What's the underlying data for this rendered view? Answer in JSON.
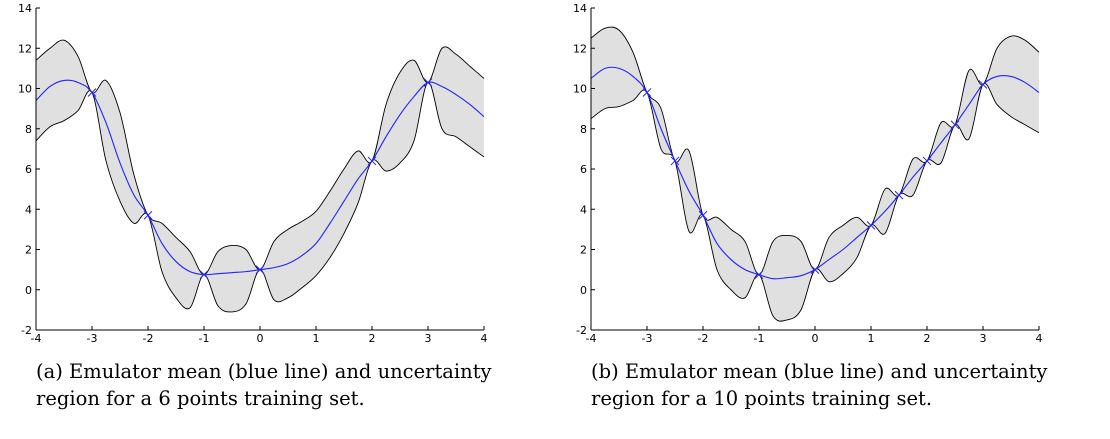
{
  "captions": {
    "a": "(a) Emulator mean (blue line) and uncertainty region for a 6 points training set.",
    "b": "(b) Emulator mean (blue line) and uncertainty region for a 10 points training set."
  },
  "chart_data": [
    {
      "type": "line",
      "title": "",
      "xlabel": "",
      "ylabel": "",
      "xlim": [
        -4,
        4
      ],
      "ylim": [
        -2,
        14
      ],
      "xticks": [
        -4,
        -3,
        -2,
        -1,
        0,
        1,
        2,
        3,
        4
      ],
      "yticks": [
        -2,
        0,
        2,
        4,
        6,
        8,
        10,
        12,
        14
      ],
      "grid": false,
      "colors": {
        "mean": "#2222ff",
        "band_fill": "#e0e0e0",
        "band_edge": "#000000",
        "marker": "#2222ff"
      },
      "training_points": {
        "x": [
          -3,
          -2,
          -1,
          0,
          2,
          3
        ],
        "y": [
          9.8,
          3.7,
          0.75,
          1.0,
          6.4,
          10.3
        ]
      },
      "series": [
        {
          "role": "mean",
          "x": [
            -4,
            -3.75,
            -3.5,
            -3.25,
            -3,
            -2.75,
            -2.5,
            -2.25,
            -2,
            -1.75,
            -1.5,
            -1.25,
            -1,
            -0.75,
            -0.5,
            -0.25,
            0,
            0.25,
            0.5,
            0.75,
            1,
            1.25,
            1.5,
            1.75,
            2,
            2.25,
            2.5,
            2.75,
            3,
            3.25,
            3.5,
            3.75,
            4
          ],
          "values": [
            9.4,
            10.1,
            10.4,
            10.3,
            9.8,
            8.3,
            6.3,
            4.7,
            3.7,
            2.3,
            1.4,
            0.9,
            0.75,
            0.8,
            0.85,
            0.9,
            1.0,
            1.1,
            1.3,
            1.7,
            2.3,
            3.3,
            4.4,
            5.5,
            6.4,
            7.6,
            8.7,
            9.6,
            10.3,
            10.1,
            9.7,
            9.2,
            8.6
          ]
        },
        {
          "role": "upper",
          "x": [
            -4,
            -3.75,
            -3.5,
            -3.25,
            -3,
            -2.75,
            -2.5,
            -2.25,
            -2,
            -1.75,
            -1.5,
            -1.25,
            -1,
            -0.75,
            -0.5,
            -0.25,
            0,
            0.25,
            0.5,
            0.75,
            1,
            1.25,
            1.5,
            1.75,
            2,
            2.25,
            2.5,
            2.75,
            3,
            3.25,
            3.5,
            3.75,
            4
          ],
          "values": [
            11.4,
            12.0,
            12.4,
            11.6,
            9.8,
            10.4,
            8.8,
            5.7,
            3.7,
            3.3,
            2.6,
            1.9,
            0.75,
            1.9,
            2.2,
            2.0,
            1.0,
            2.4,
            3.0,
            3.4,
            3.9,
            4.9,
            6.0,
            6.9,
            6.4,
            9.2,
            10.8,
            11.4,
            10.3,
            12.0,
            11.7,
            11.1,
            10.5
          ]
        },
        {
          "role": "lower",
          "x": [
            -4,
            -3.75,
            -3.5,
            -3.25,
            -3,
            -2.75,
            -2.5,
            -2.25,
            -2,
            -1.75,
            -1.5,
            -1.25,
            -1,
            -0.75,
            -0.5,
            -0.25,
            0,
            0.25,
            0.5,
            0.75,
            1,
            1.25,
            1.5,
            1.75,
            2,
            2.25,
            2.5,
            2.75,
            3,
            3.25,
            3.5,
            3.75,
            4
          ],
          "values": [
            7.4,
            8.1,
            8.4,
            8.9,
            9.8,
            6.4,
            4.4,
            3.3,
            3.7,
            0.9,
            -0.4,
            -0.9,
            0.75,
            -0.8,
            -1.1,
            -0.7,
            1.0,
            -0.5,
            -0.4,
            0.1,
            0.7,
            1.6,
            2.8,
            4.3,
            6.4,
            5.9,
            6.3,
            7.4,
            10.3,
            8.0,
            7.6,
            7.1,
            6.6
          ]
        }
      ]
    },
    {
      "type": "line",
      "title": "",
      "xlabel": "",
      "ylabel": "",
      "xlim": [
        -4,
        4
      ],
      "ylim": [
        -2,
        14
      ],
      "xticks": [
        -4,
        -3,
        -2,
        -1,
        0,
        1,
        2,
        3,
        4
      ],
      "yticks": [
        -2,
        0,
        2,
        4,
        6,
        8,
        10,
        12,
        14
      ],
      "grid": false,
      "colors": {
        "mean": "#2222ff",
        "band_fill": "#e0e0e0",
        "band_edge": "#000000",
        "marker": "#2222ff"
      },
      "training_points": {
        "x": [
          -3,
          -2.5,
          -2,
          -1,
          0,
          1,
          1.5,
          2,
          2.5,
          3
        ],
        "y": [
          9.8,
          6.4,
          3.7,
          0.75,
          1.0,
          3.2,
          4.7,
          6.4,
          8.2,
          10.2
        ]
      },
      "series": [
        {
          "role": "mean",
          "x": [
            -4,
            -3.75,
            -3.5,
            -3.25,
            -3,
            -2.75,
            -2.5,
            -2.25,
            -2,
            -1.75,
            -1.5,
            -1.25,
            -1,
            -0.75,
            -0.5,
            -0.25,
            0,
            0.25,
            0.5,
            0.75,
            1,
            1.25,
            1.5,
            1.75,
            2,
            2.25,
            2.5,
            2.75,
            3,
            3.25,
            3.5,
            3.75,
            4
          ],
          "values": [
            10.5,
            11.0,
            11.0,
            10.6,
            9.8,
            8.0,
            6.4,
            4.9,
            3.7,
            2.3,
            1.5,
            1.0,
            0.75,
            0.55,
            0.6,
            0.7,
            1.0,
            1.5,
            2.0,
            2.6,
            3.2,
            3.9,
            4.7,
            5.6,
            6.4,
            7.3,
            8.2,
            9.2,
            10.2,
            10.6,
            10.6,
            10.3,
            9.8
          ]
        },
        {
          "role": "upper",
          "x": [
            -4,
            -3.75,
            -3.5,
            -3.25,
            -3,
            -2.75,
            -2.5,
            -2.25,
            -2,
            -1.75,
            -1.5,
            -1.25,
            -1,
            -0.75,
            -0.5,
            -0.25,
            0,
            0.25,
            0.5,
            0.75,
            1,
            1.25,
            1.5,
            1.75,
            2,
            2.25,
            2.5,
            2.75,
            3,
            3.25,
            3.5,
            3.75,
            4
          ],
          "values": [
            12.5,
            13.0,
            12.9,
            11.8,
            9.8,
            9.0,
            6.4,
            6.9,
            3.7,
            3.6,
            3.0,
            2.4,
            0.75,
            2.4,
            2.7,
            2.4,
            1.0,
            2.6,
            3.2,
            3.6,
            3.2,
            5.0,
            4.7,
            6.5,
            6.4,
            8.3,
            8.2,
            10.9,
            10.2,
            12.0,
            12.6,
            12.4,
            11.8
          ]
        },
        {
          "role": "lower",
          "x": [
            -4,
            -3.75,
            -3.5,
            -3.25,
            -3,
            -2.75,
            -2.5,
            -2.25,
            -2,
            -1.75,
            -1.5,
            -1.25,
            -1,
            -0.75,
            -0.5,
            -0.25,
            0,
            0.25,
            0.5,
            0.75,
            1,
            1.25,
            1.5,
            1.75,
            2,
            2.25,
            2.5,
            2.75,
            3,
            3.25,
            3.5,
            3.75,
            4
          ],
          "values": [
            8.5,
            9.0,
            9.1,
            9.4,
            9.8,
            7.0,
            6.4,
            2.9,
            3.7,
            1.0,
            0.0,
            -0.4,
            0.75,
            -1.3,
            -1.5,
            -1.0,
            1.0,
            0.4,
            0.8,
            1.6,
            3.2,
            2.8,
            4.7,
            4.7,
            6.4,
            6.3,
            8.2,
            7.5,
            10.2,
            9.2,
            8.6,
            8.2,
            7.8
          ]
        }
      ]
    }
  ]
}
